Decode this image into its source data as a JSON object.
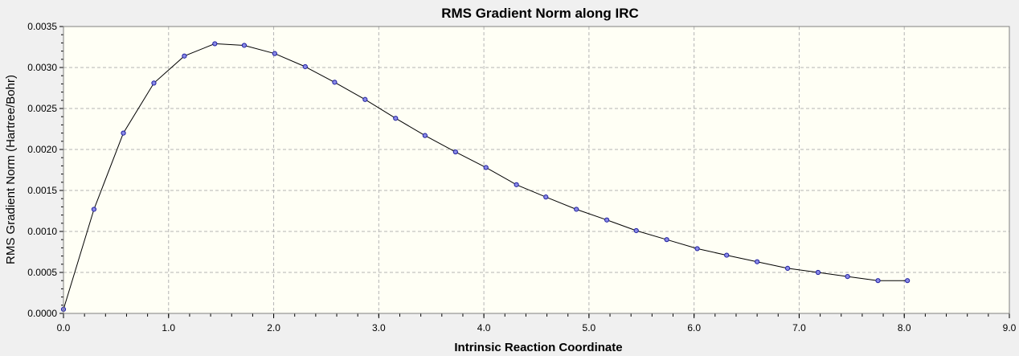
{
  "colors": {
    "page_background": "#f0f0f0",
    "plot_background": "#fffff5",
    "grid": "#b4b4b4",
    "line": "#000000",
    "marker_fill": "#8a8ae6",
    "marker_stroke": "#2020a0"
  },
  "chart_data": {
    "type": "line",
    "title": "RMS Gradient Norm along IRC",
    "xlabel": "Intrinsic Reaction Coordinate",
    "ylabel": "RMS Gradient Norm (Hartree/Bohr)",
    "xlim": [
      0.0,
      9.0
    ],
    "ylim": [
      0.0,
      0.0035
    ],
    "xticks": [
      "0.0",
      "1.0",
      "2.0",
      "3.0",
      "4.0",
      "5.0",
      "6.0",
      "7.0",
      "8.0",
      "9.0"
    ],
    "yticks": [
      "0.0000",
      "0.0005",
      "0.0010",
      "0.0015",
      "0.0020",
      "0.0025",
      "0.0030",
      "0.0035"
    ],
    "grid": true,
    "markers": true,
    "series": [
      {
        "x": [
          0.0,
          0.29,
          0.57,
          0.86,
          1.15,
          1.44,
          1.72,
          2.01,
          2.3,
          2.58,
          2.87,
          3.16,
          3.44,
          3.73,
          4.02,
          4.31,
          4.59,
          4.88,
          5.17,
          5.45,
          5.74,
          6.03,
          6.31,
          6.6,
          6.89,
          7.18,
          7.46,
          7.75,
          8.03
        ],
        "y": [
          5e-05,
          0.00127,
          0.0022,
          0.00281,
          0.00314,
          0.00329,
          0.00327,
          0.00317,
          0.00301,
          0.00282,
          0.00261,
          0.00238,
          0.00217,
          0.00197,
          0.00178,
          0.00157,
          0.00142,
          0.00127,
          0.00114,
          0.00101,
          0.0009,
          0.00079,
          0.00071,
          0.00063,
          0.00055,
          0.0005,
          0.00045,
          0.0004,
          0.0004
        ]
      }
    ]
  }
}
